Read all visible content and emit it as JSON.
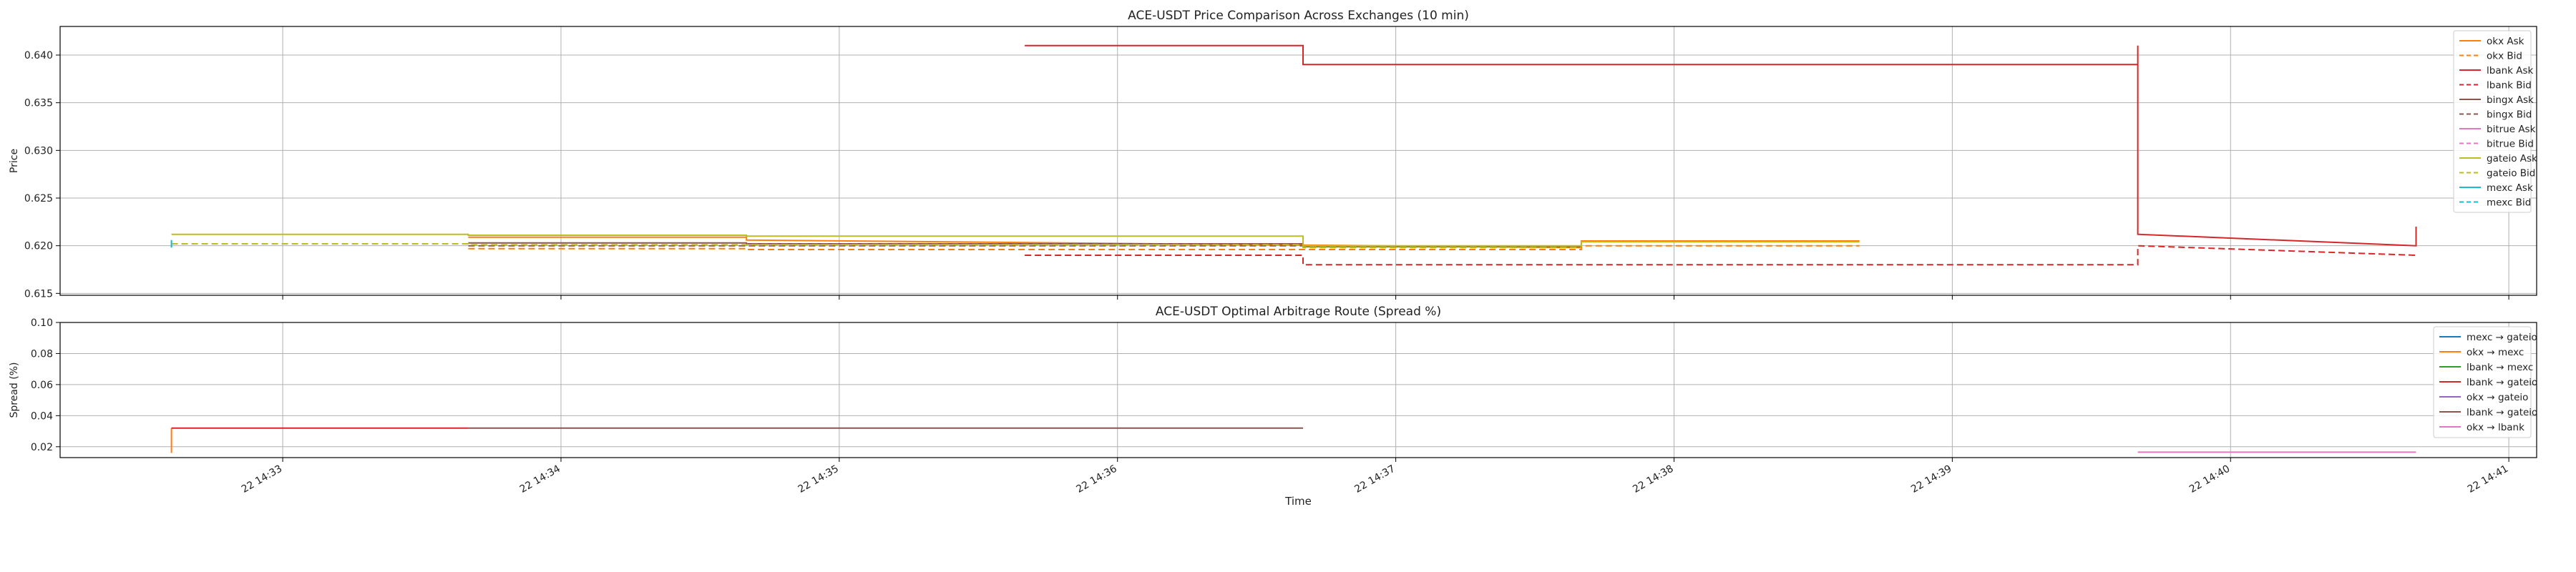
{
  "chart_data": [
    {
      "type": "line",
      "title": "ACE-USDT Price Comparison Across Exchanges (10 min)",
      "xlabel": "",
      "ylabel": "Price",
      "ylim": [
        0.6148,
        0.643
      ],
      "xlim": [
        "2024-01-22 14:32:12",
        "2024-01-22 14:41:06"
      ],
      "yticks": [
        0.615,
        0.62,
        0.625,
        0.63,
        0.635,
        0.64
      ],
      "ytick_labels": [
        "0.615",
        "0.620",
        "0.625",
        "0.630",
        "0.635",
        "0.640"
      ],
      "grid": true,
      "legend_position": "top-right",
      "series": [
        {
          "name": "okx Ask",
          "color": "#ff7f0e",
          "dash": "solid",
          "points": [
            [
              "14:33:40",
              0.6209
            ],
            [
              "14:34:40",
              0.6209
            ],
            [
              "14:34:40",
              0.6206
            ],
            [
              "14:37:40",
              0.6198
            ],
            [
              "14:37:40",
              0.6205
            ],
            [
              "14:38:40",
              0.6205
            ]
          ]
        },
        {
          "name": "okx Bid",
          "color": "#ff7f0e",
          "dash": "dashed",
          "points": [
            [
              "14:33:40",
              0.6197
            ],
            [
              "14:34:40",
              0.6197
            ],
            [
              "14:34:40",
              0.6196
            ],
            [
              "14:37:40",
              0.6196
            ],
            [
              "14:37:40",
              0.62
            ],
            [
              "14:38:40",
              0.62
            ]
          ]
        },
        {
          "name": "lbank Ask",
          "color": "#d62728",
          "dash": "solid",
          "points": [
            [
              "14:35:40",
              0.641
            ],
            [
              "14:36:40",
              0.641
            ],
            [
              "14:36:40",
              0.639
            ],
            [
              "14:39:40",
              0.639
            ],
            [
              "14:39:40",
              0.641
            ],
            [
              "14:39:40",
              0.6212
            ],
            [
              "14:40:40",
              0.62
            ],
            [
              "14:40:40",
              0.622
            ]
          ]
        },
        {
          "name": "lbank Bid",
          "color": "#d62728",
          "dash": "dashed",
          "points": [
            [
              "14:35:40",
              0.619
            ],
            [
              "14:36:40",
              0.619
            ],
            [
              "14:36:40",
              0.618
            ],
            [
              "14:39:40",
              0.618
            ],
            [
              "14:39:40",
              0.62
            ],
            [
              "14:40:40",
              0.619
            ]
          ]
        },
        {
          "name": "bingx Ask",
          "color": "#8c564b",
          "dash": "solid",
          "points": [
            [
              "14:33:40",
              0.6203
            ],
            [
              "14:34:40",
              0.6203
            ],
            [
              "14:34:40",
              0.6202
            ],
            [
              "14:36:40",
              0.6202
            ],
            [
              "14:36:40",
              0.6199
            ],
            [
              "14:37:40",
              0.6199
            ]
          ]
        },
        {
          "name": "bingx Bid",
          "color": "#8c564b",
          "dash": "dashed",
          "points": [
            [
              "14:33:40",
              0.62
            ],
            [
              "14:36:40",
              0.62
            ]
          ]
        },
        {
          "name": "bitrue Ask",
          "color": "#e377c2",
          "dash": "solid",
          "points": [
            [
              "14:32:36",
              0.6205
            ],
            [
              "14:32:36",
              0.6203
            ]
          ]
        },
        {
          "name": "bitrue Bid",
          "color": "#e377c2",
          "dash": "dashed",
          "points": [
            [
              "14:32:36",
              0.62
            ],
            [
              "14:32:36",
              0.6199
            ]
          ]
        },
        {
          "name": "gateio Ask",
          "color": "#bcbd22",
          "dash": "solid",
          "points": [
            [
              "14:32:36",
              0.6212
            ],
            [
              "14:33:40",
              0.6212
            ],
            [
              "14:33:40",
              0.6211
            ],
            [
              "14:34:40",
              0.6211
            ],
            [
              "14:34:40",
              0.621
            ],
            [
              "14:36:40",
              0.621
            ],
            [
              "14:36:40",
              0.62
            ],
            [
              "14:37:40",
              0.62
            ],
            [
              "14:37:40",
              0.6204
            ],
            [
              "14:38:40",
              0.6204
            ]
          ]
        },
        {
          "name": "gateio Bid",
          "color": "#bcbd22",
          "dash": "dashed",
          "points": [
            [
              "14:32:36",
              0.6202
            ],
            [
              "14:33:40",
              0.6202
            ],
            [
              "14:33:40",
              0.6201
            ],
            [
              "14:36:40",
              0.6201
            ],
            [
              "14:36:40",
              0.6198
            ],
            [
              "14:37:40",
              0.6198
            ]
          ]
        },
        {
          "name": "mexc Ask",
          "color": "#17becf",
          "dash": "solid",
          "points": [
            [
              "14:32:36",
              0.6206
            ],
            [
              "14:32:36",
              0.6199
            ]
          ]
        },
        {
          "name": "mexc Bid",
          "color": "#17becf",
          "dash": "dashed",
          "points": [
            [
              "14:32:36",
              0.6201
            ],
            [
              "14:32:36",
              0.6198
            ]
          ]
        }
      ]
    },
    {
      "type": "line",
      "title": "ACE-USDT Optimal Arbitrage Route (Spread %)",
      "xlabel": "Time",
      "ylabel": "Spread (%)",
      "ylim": [
        0.013,
        0.1
      ],
      "xlim": [
        "2024-01-22 14:32:12",
        "2024-01-22 14:41:06"
      ],
      "yticks": [
        0.02,
        0.04,
        0.06,
        0.08,
        0.1
      ],
      "ytick_labels": [
        "0.02",
        "0.04",
        "0.06",
        "0.08",
        "0.10"
      ],
      "xticks": [
        "14:33",
        "14:34",
        "14:35",
        "14:36",
        "14:37",
        "14:38",
        "14:39",
        "14:40",
        "14:41"
      ],
      "xtick_labels": [
        "22 14:33",
        "22 14:34",
        "22 14:35",
        "22 14:36",
        "22 14:37",
        "22 14:38",
        "22 14:39",
        "22 14:40",
        "22 14:41"
      ],
      "grid": true,
      "legend_position": "top-right",
      "series": [
        {
          "name": "mexc → gateio",
          "color": "#1f77b4",
          "points": []
        },
        {
          "name": "okx → mexc",
          "color": "#ff7f0e",
          "points": [
            [
              "14:32:36",
              0.016
            ],
            [
              "14:32:36",
              0.032
            ]
          ]
        },
        {
          "name": "lbank → mexc",
          "color": "#2ca02c",
          "points": []
        },
        {
          "name": "lbank → gateio",
          "color": "#d62728",
          "points": [
            [
              "14:32:36",
              0.032
            ],
            [
              "14:33:40",
              0.032
            ]
          ]
        },
        {
          "name": "okx → gateio",
          "color": "#9467bd",
          "points": []
        },
        {
          "name": "lbank → gateio",
          "color": "#8c564b",
          "points": [
            [
              "14:33:40",
              0.032
            ],
            [
              "14:36:40",
              0.032
            ]
          ]
        },
        {
          "name": "okx → lbank",
          "color": "#e377c2",
          "points": [
            [
              "14:39:40",
              0.0165
            ],
            [
              "14:40:40",
              0.0165
            ]
          ]
        }
      ]
    }
  ]
}
